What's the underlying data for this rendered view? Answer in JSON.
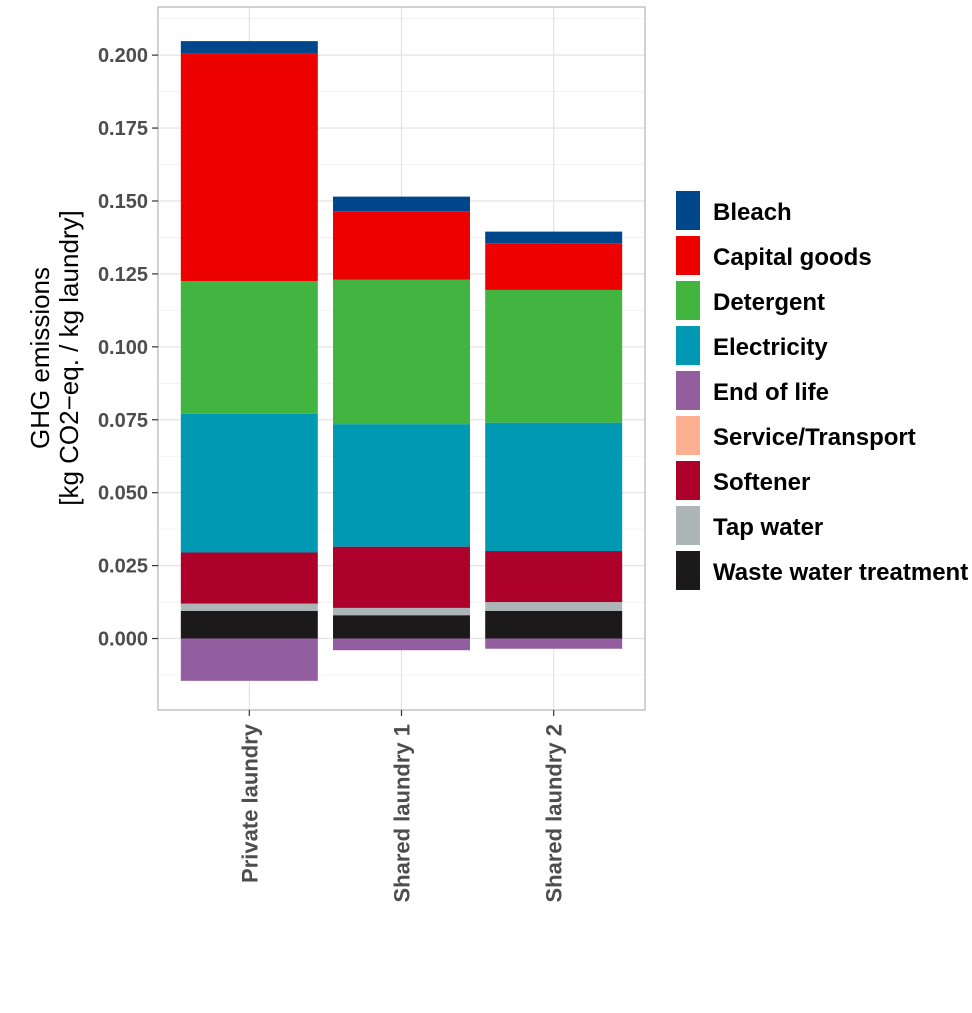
{
  "chart_data": {
    "type": "bar",
    "stacked": true,
    "categories": [
      "Private laundry",
      "Shared laundry 1",
      "Shared laundry 2"
    ],
    "ylabel_lines": [
      "GHG emissions",
      "[kg CO2−eq. / kg laundry]"
    ],
    "ylim": [
      -0.0245,
      0.2165
    ],
    "yticks": [
      0.0,
      0.025,
      0.05,
      0.075,
      0.1,
      0.125,
      0.15,
      0.175,
      0.2
    ],
    "ytick_labels": [
      "0.000",
      "0.025",
      "0.050",
      "0.075",
      "0.100",
      "0.125",
      "0.150",
      "0.175",
      "0.200"
    ],
    "grid": true,
    "legend_position": "right",
    "series": [
      {
        "name": "Bleach",
        "color": "#00468b",
        "values": [
          0.0043,
          0.005,
          0.004
        ]
      },
      {
        "name": "Capital goods",
        "color": "#ed0000",
        "values": [
          0.078,
          0.0235,
          0.016
        ]
      },
      {
        "name": "Detergent",
        "color": "#42b540",
        "values": [
          0.0455,
          0.0495,
          0.0455
        ]
      },
      {
        "name": "Electricity",
        "color": "#0099b4",
        "values": [
          0.0475,
          0.042,
          0.044
        ]
      },
      {
        "name": "End of life",
        "color": "#925e9f",
        "values": [
          -0.0145,
          -0.004,
          -0.0035
        ]
      },
      {
        "name": "Service/Transport",
        "color": "#fdaf91",
        "values": [
          0.0,
          0.0,
          0.0
        ]
      },
      {
        "name": "Softener",
        "color": "#ad002a",
        "values": [
          0.0175,
          0.021,
          0.0175
        ]
      },
      {
        "name": "Tap water",
        "color": "#adb6b6",
        "values": [
          0.0025,
          0.0025,
          0.003
        ]
      },
      {
        "name": "Waste water treatment",
        "color": "#1b1919",
        "values": [
          0.0095,
          0.008,
          0.0095
        ]
      }
    ]
  }
}
